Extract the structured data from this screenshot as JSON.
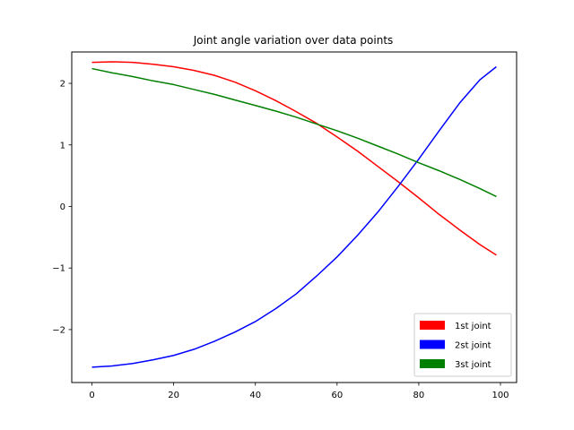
{
  "chart_data": {
    "type": "line",
    "title": "Joint angle variation over data points",
    "xlabel": "",
    "ylabel": "",
    "xlim": [
      -4.95,
      103.95
    ],
    "ylim": [
      -2.86,
      2.51
    ],
    "x_ticks": [
      0,
      20,
      40,
      60,
      80,
      100
    ],
    "y_ticks": [
      -2,
      -1,
      0,
      1,
      2
    ],
    "x_tick_labels": [
      "0",
      "20",
      "40",
      "60",
      "80",
      "100"
    ],
    "y_tick_labels": [
      "−2",
      "−1",
      "0",
      "1",
      "2"
    ],
    "grid": false,
    "legend": "lower-right",
    "x": [
      0,
      5,
      10,
      15,
      20,
      25,
      30,
      35,
      40,
      45,
      50,
      55,
      60,
      65,
      70,
      75,
      80,
      85,
      90,
      95,
      99
    ],
    "series": [
      {
        "name": "1st joint",
        "color": "#ff0000",
        "values": [
          2.34,
          2.35,
          2.34,
          2.31,
          2.27,
          2.21,
          2.13,
          2.02,
          1.88,
          1.72,
          1.54,
          1.35,
          1.13,
          0.9,
          0.65,
          0.4,
          0.14,
          -0.13,
          -0.38,
          -0.62,
          -0.79
        ]
      },
      {
        "name": "2st joint",
        "color": "#0000ff",
        "values": [
          -2.61,
          -2.59,
          -2.55,
          -2.49,
          -2.42,
          -2.32,
          -2.19,
          -2.04,
          -1.87,
          -1.66,
          -1.42,
          -1.13,
          -0.82,
          -0.47,
          -0.09,
          0.33,
          0.77,
          1.23,
          1.68,
          2.06,
          2.27
        ]
      },
      {
        "name": "3st joint",
        "color": "#008000",
        "values": [
          2.24,
          2.17,
          2.11,
          2.04,
          1.98,
          1.9,
          1.82,
          1.73,
          1.64,
          1.55,
          1.45,
          1.34,
          1.23,
          1.11,
          0.98,
          0.85,
          0.71,
          0.58,
          0.44,
          0.29,
          0.16
        ]
      }
    ]
  }
}
